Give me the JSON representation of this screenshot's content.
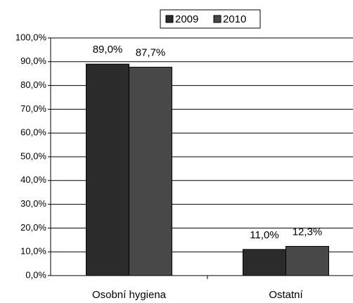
{
  "chart_data": {
    "type": "bar",
    "categories": [
      "Osobní hygiena",
      "Ostatní"
    ],
    "series": [
      {
        "name": "2009",
        "color": "#2b2b2b",
        "values": [
          89.0,
          11.0
        ],
        "value_labels": [
          "89,0%",
          "11,0%"
        ]
      },
      {
        "name": "2010",
        "color": "#484848",
        "values": [
          87.7,
          12.3
        ],
        "value_labels": [
          "87,7%",
          "12,3%"
        ]
      }
    ],
    "ylim": [
      0,
      100
    ],
    "yticks": [
      {
        "value": 0,
        "label": "0,0%"
      },
      {
        "value": 10,
        "label": "10,0%"
      },
      {
        "value": 20,
        "label": "20,0%"
      },
      {
        "value": 30,
        "label": "30,0%"
      },
      {
        "value": 40,
        "label": "40,0%"
      },
      {
        "value": 50,
        "label": "50,0%"
      },
      {
        "value": 60,
        "label": "60,0%"
      },
      {
        "value": 70,
        "label": "70,0%"
      },
      {
        "value": 80,
        "label": "80,0%"
      },
      {
        "value": 90,
        "label": "90,0%"
      },
      {
        "value": 100,
        "label": "100,0%"
      }
    ],
    "grid": true,
    "legend": "top"
  }
}
